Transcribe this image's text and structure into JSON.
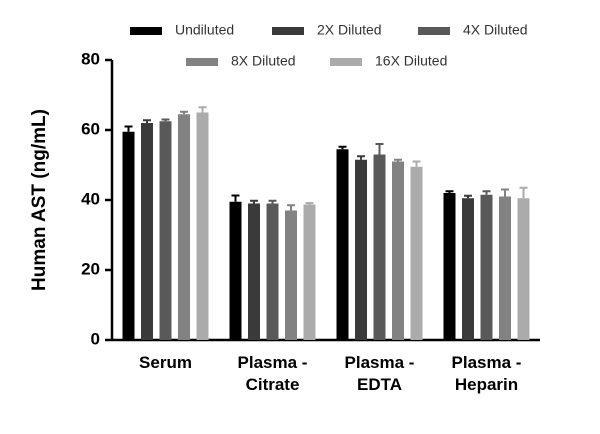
{
  "chart_data": {
    "type": "bar",
    "y_label": "Human AST (ng/mL)",
    "categories": [
      "Serum",
      "Plasma - Citrate",
      "Plasma - EDTA",
      "Plasma - Heparin"
    ],
    "series": [
      {
        "name": "Undiluted",
        "color": "#000000",
        "values": [
          59.5,
          39.5,
          54.5,
          42
        ],
        "errors": [
          1.5,
          1.8,
          0.7,
          0.5
        ]
      },
      {
        "name": "2X Diluted",
        "color": "#3a3a3a",
        "values": [
          62,
          39,
          51.5,
          40.5
        ],
        "errors": [
          0.8,
          0.8,
          1,
          0.7
        ]
      },
      {
        "name": "4X Diluted",
        "color": "#595959",
        "values": [
          62.5,
          39,
          53,
          41.5
        ],
        "errors": [
          0.5,
          0.8,
          3,
          1
        ]
      },
      {
        "name": "8X Diluted",
        "color": "#828282",
        "values": [
          64.5,
          37,
          51,
          41
        ],
        "errors": [
          0.7,
          1.5,
          0.5,
          2
        ]
      },
      {
        "name": "16X Diluted",
        "color": "#ababab",
        "values": [
          65,
          38.7,
          49.5,
          40.5
        ],
        "errors": [
          1.5,
          0.4,
          1.5,
          3
        ]
      }
    ],
    "ylim": [
      0,
      80
    ],
    "yticks": [
      0,
      20,
      40,
      60,
      80
    ]
  }
}
